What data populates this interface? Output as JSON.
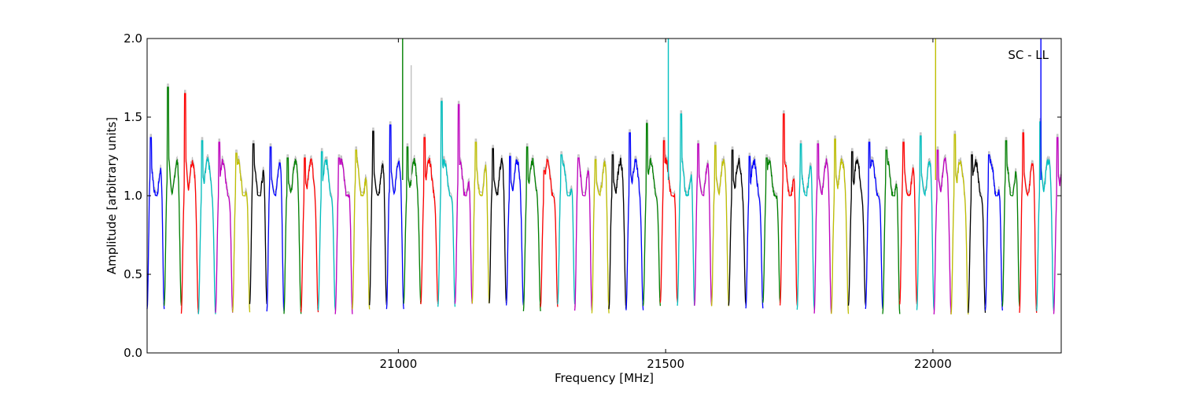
{
  "chart_data": {
    "type": "line",
    "title": "",
    "annotation": "SC - LL",
    "xlabel": "Frequency [MHz]",
    "ylabel": "Amplitude [arbitrary units]",
    "xlim": [
      20530,
      22240
    ],
    "ylim": [
      0,
      2.0
    ],
    "xticks": [
      21000,
      21500,
      22000
    ],
    "xtick_labels": [
      "21000",
      "21500",
      "22000"
    ],
    "yticks": [
      0.0,
      0.5,
      1.0,
      1.5,
      2.0
    ],
    "ytick_labels": [
      "0.0",
      "0.5",
      "1.0",
      "1.5",
      "2.0"
    ],
    "grid": false,
    "colors": [
      "#0000ff",
      "#008000",
      "#ff0000",
      "#00bfbf",
      "#bf00bf",
      "#bfbf00",
      "#000000"
    ],
    "background_color": "#c0c0c0",
    "channel_width_mhz": 32,
    "channel_peaks": [
      1.37,
      1.69,
      1.65,
      1.35,
      1.34,
      1.27,
      1.33,
      1.31,
      1.24,
      1.24,
      1.28,
      1.24,
      1.29,
      1.41,
      1.45,
      1.31,
      1.37,
      1.6,
      1.58,
      1.34,
      1.3,
      1.25,
      1.31,
      1.16,
      1.26,
      1.24,
      1.23,
      1.26,
      1.4,
      1.46,
      1.35,
      1.52,
      1.33,
      1.32,
      1.29,
      1.25,
      1.24,
      1.52,
      1.33,
      1.33,
      1.36,
      1.28,
      1.34,
      1.29,
      1.34,
      1.38,
      1.29,
      1.39,
      1.26,
      1.26,
      1.35,
      1.4,
      1.47,
      1.37
    ],
    "spikes": [
      {
        "x": 21008,
        "y": 2.0,
        "color": "#008000"
      },
      {
        "x": 21024,
        "y": 1.83,
        "color": "#c0c0c0"
      },
      {
        "x": 21505,
        "y": 2.0,
        "color": "#00bfbf"
      },
      {
        "x": 22005,
        "y": 2.0,
        "color": "#bfbf00"
      },
      {
        "x": 22202,
        "y": 2.0,
        "color": "#0000ff"
      }
    ]
  }
}
